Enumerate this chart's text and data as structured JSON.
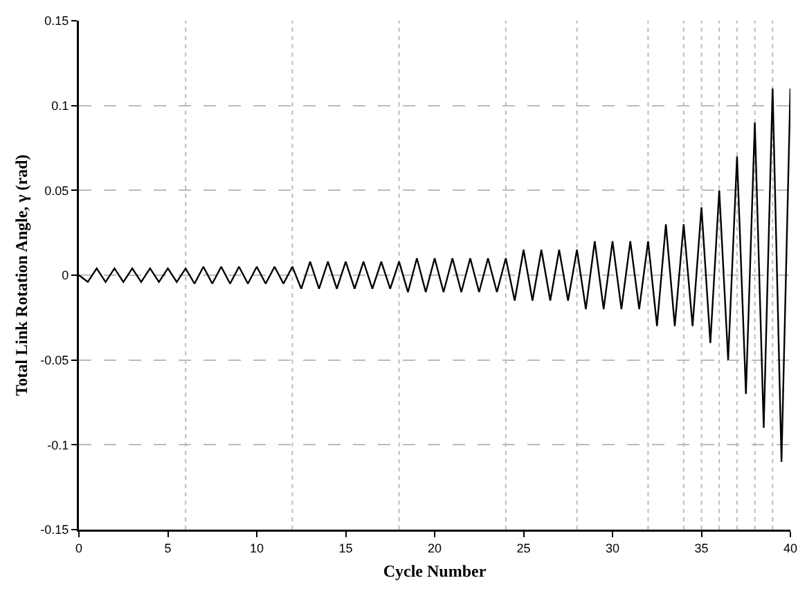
{
  "chart_data": {
    "type": "line",
    "xlabel": "Cycle Number",
    "ylabel": "Total Link Rotation Angle, γ (rad)",
    "xlim": [
      0,
      40
    ],
    "xticks": [
      0,
      5,
      10,
      15,
      20,
      25,
      30,
      35,
      40
    ],
    "ylim": [
      -0.15,
      0.15
    ],
    "yticks": [
      -0.15,
      -0.1,
      -0.05,
      0,
      0.05,
      0.1,
      0.15
    ],
    "grid": "y",
    "marker": "none",
    "line_style": "solid",
    "ref_lines": [
      {
        "axis": "x",
        "value": 6,
        "line_style": "dotted",
        "color": "#bbbbbb"
      },
      {
        "axis": "x",
        "value": 12,
        "line_style": "dotted",
        "color": "#bbbbbb"
      },
      {
        "axis": "x",
        "value": 18,
        "line_style": "dotted",
        "color": "#bbbbbb"
      },
      {
        "axis": "x",
        "value": 24,
        "line_style": "dotted",
        "color": "#bbbbbb"
      },
      {
        "axis": "x",
        "value": 28,
        "line_style": "dotted",
        "color": "#bbbbbb"
      },
      {
        "axis": "x",
        "value": 32,
        "line_style": "dotted",
        "color": "#bbbbbb"
      },
      {
        "axis": "x",
        "value": 34,
        "line_style": "dotted",
        "color": "#bbbbbb"
      },
      {
        "axis": "x",
        "value": 35,
        "line_style": "dotted",
        "color": "#bbbbbb"
      },
      {
        "axis": "x",
        "value": 36,
        "line_style": "dotted",
        "color": "#bbbbbb"
      },
      {
        "axis": "x",
        "value": 37,
        "line_style": "dotted",
        "color": "#bbbbbb"
      },
      {
        "axis": "x",
        "value": 38,
        "line_style": "dotted",
        "color": "#bbbbbb"
      },
      {
        "axis": "x",
        "value": 39,
        "line_style": "dotted",
        "color": "#bbbbbb"
      }
    ],
    "series": [
      {
        "color": "#000000",
        "x": [
          0,
          0.5,
          1,
          1.5,
          2,
          2.5,
          3,
          3.5,
          4,
          4.5,
          5,
          5.5,
          6,
          6.5,
          7,
          7.5,
          8,
          8.5,
          9,
          9.5,
          10,
          10.5,
          11,
          11.5,
          12,
          12.5,
          13,
          13.5,
          14,
          14.5,
          15,
          15.5,
          16,
          16.5,
          17,
          17.5,
          18,
          18.5,
          19,
          19.5,
          20,
          20.5,
          21,
          21.5,
          22,
          22.5,
          23,
          23.5,
          24,
          24.5,
          25,
          25.5,
          26,
          26.5,
          27,
          27.5,
          28,
          28.5,
          29,
          29.5,
          30,
          30.5,
          31,
          31.5,
          32,
          32.5,
          33,
          33.5,
          34,
          34.5,
          35,
          35.5,
          36,
          36.5,
          37,
          37.5,
          38,
          38.5,
          39,
          39.5,
          40
        ],
        "values": [
          0,
          -0.004,
          0.004,
          -0.004,
          0.004,
          -0.004,
          0.004,
          -0.004,
          0.004,
          -0.004,
          0.004,
          -0.004,
          0.004,
          -0.005,
          0.005,
          -0.005,
          0.005,
          -0.005,
          0.005,
          -0.005,
          0.005,
          -0.005,
          0.005,
          -0.005,
          0.005,
          -0.008,
          0.008,
          -0.008,
          0.008,
          -0.008,
          0.008,
          -0.008,
          0.008,
          -0.008,
          0.008,
          -0.008,
          0.008,
          -0.01,
          0.01,
          -0.01,
          0.01,
          -0.01,
          0.01,
          -0.01,
          0.01,
          -0.01,
          0.01,
          -0.01,
          0.01,
          -0.015,
          0.015,
          -0.015,
          0.015,
          -0.015,
          0.015,
          -0.015,
          0.015,
          -0.02,
          0.02,
          -0.02,
          0.02,
          -0.02,
          0.02,
          -0.02,
          0.02,
          -0.03,
          0.03,
          -0.03,
          0.03,
          -0.03,
          0.04,
          -0.04,
          0.05,
          -0.05,
          0.07,
          -0.07,
          0.09,
          -0.09,
          0.11,
          -0.11,
          0.11
        ]
      }
    ]
  }
}
